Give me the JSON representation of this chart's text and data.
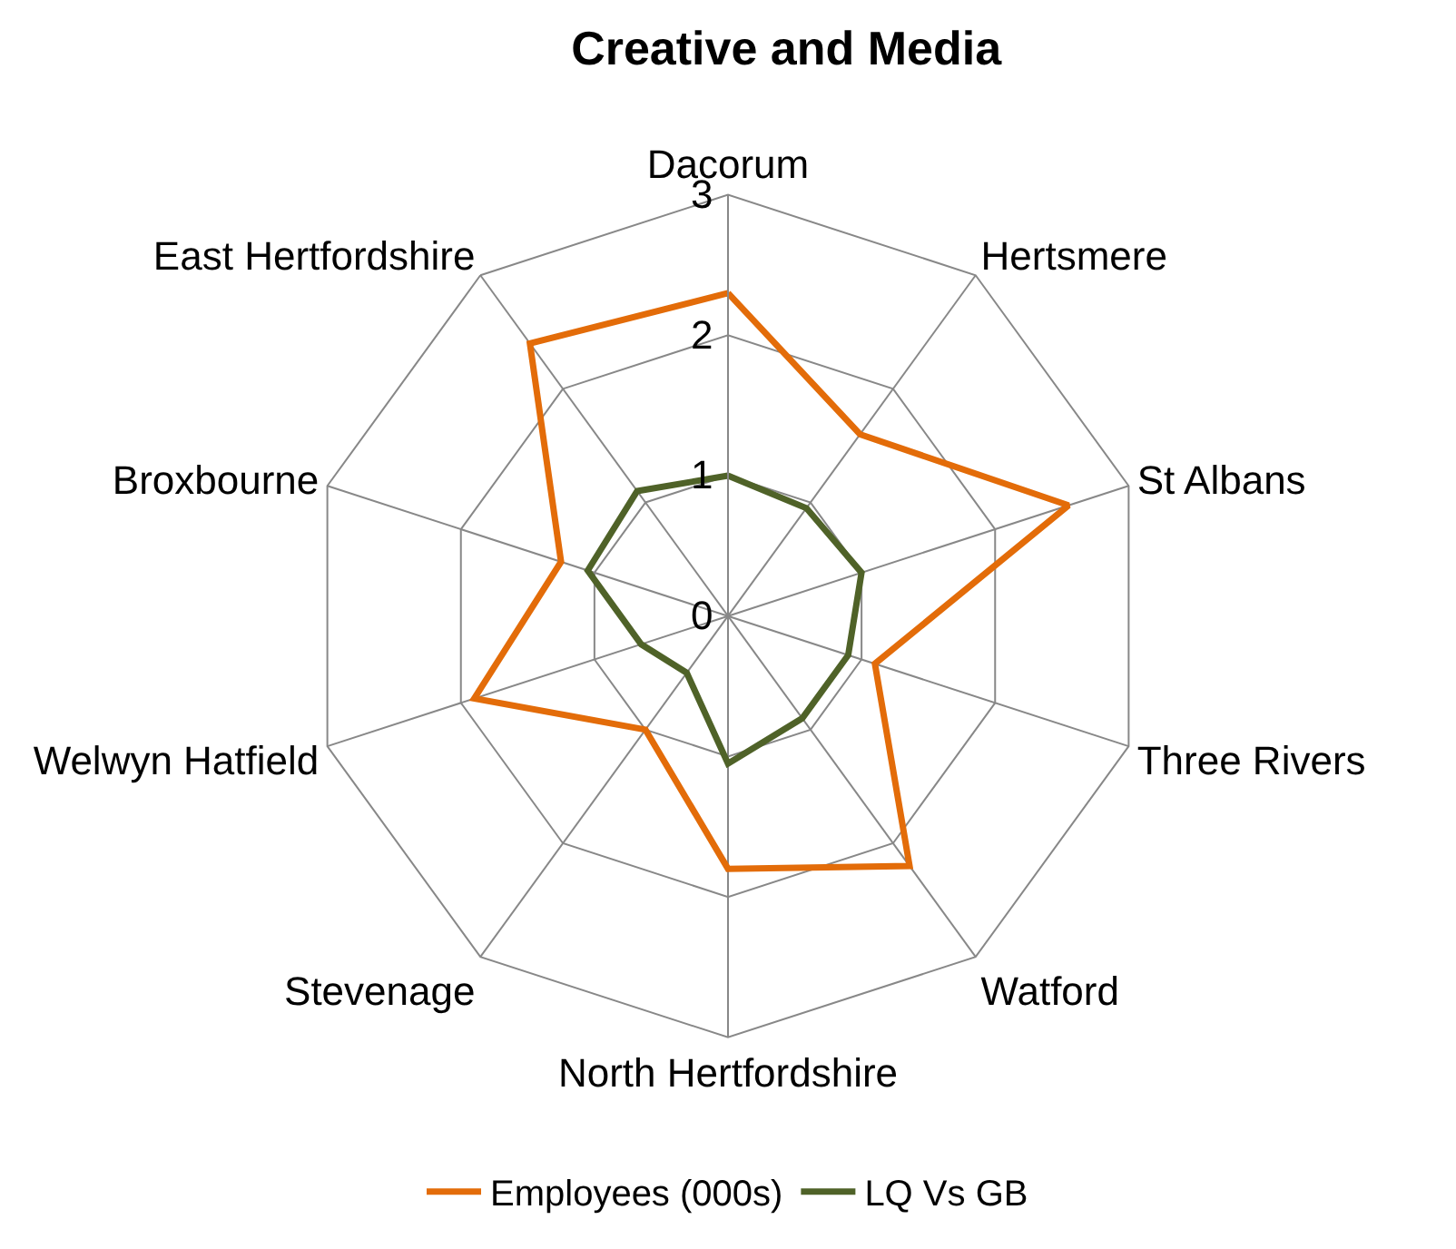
{
  "chart_data": {
    "type": "radar",
    "title": "Creative and Media",
    "categories": [
      "Dacorum",
      "Hertsmere",
      "St Albans",
      "Three Rivers",
      "Watford",
      "North Hertfordshire",
      "Stevenage",
      "Welwyn Hatfield",
      "Broxbourne",
      "East Hertfordshire"
    ],
    "series": [
      {
        "name": "Employees (000s)",
        "color": "#e36c09",
        "values": [
          2.3,
          1.6,
          2.55,
          1.1,
          2.2,
          1.8,
          1.0,
          1.9,
          1.25,
          2.4
        ]
      },
      {
        "name": "LQ Vs GB",
        "color": "#4f6228",
        "values": [
          1.0,
          0.95,
          1.0,
          0.9,
          0.9,
          1.05,
          0.5,
          0.65,
          1.05,
          1.1
        ]
      }
    ],
    "ylim": [
      0,
      3
    ],
    "yticks": [
      0,
      1,
      2,
      3
    ],
    "grid": true,
    "legend": "bottom",
    "marker": "none",
    "line_style": "solid"
  }
}
